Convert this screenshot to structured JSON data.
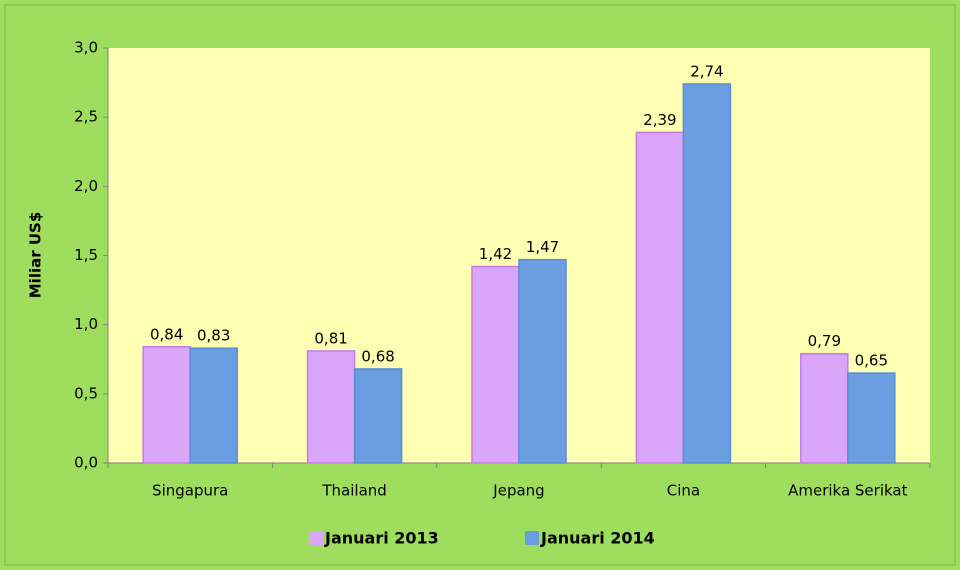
{
  "chart_data": {
    "type": "bar",
    "y_label": "Miliar US$",
    "categories": [
      "Singapura",
      "Thailand",
      "Jepang",
      "Cina",
      "Amerika Serikat"
    ],
    "series": [
      {
        "name": "Januari 2013",
        "color": "#d9a6fa",
        "values": [
          0.84,
          0.81,
          1.42,
          2.39,
          0.79
        ],
        "value_labels": [
          "0,84",
          "0,81",
          "1,42",
          "2,39",
          "0,79"
        ]
      },
      {
        "name": "Januari 2014",
        "color": "#6a9ee0",
        "values": [
          0.83,
          0.68,
          1.47,
          2.74,
          0.65
        ],
        "value_labels": [
          "0,83",
          "0,68",
          "1,47",
          "2,74",
          "0,65"
        ]
      }
    ],
    "ylim": [
      0,
      3
    ],
    "yticks": [
      {
        "value": 0,
        "label": "0,0"
      },
      {
        "value": 0.5,
        "label": "0,5"
      },
      {
        "value": 1,
        "label": "1,0"
      },
      {
        "value": 1.5,
        "label": "1,5"
      },
      {
        "value": 2,
        "label": "2,0"
      },
      {
        "value": 2.5,
        "label": "2,5"
      },
      {
        "value": 3,
        "label": "3,0"
      }
    ],
    "grid": false,
    "legend": "bottom"
  }
}
